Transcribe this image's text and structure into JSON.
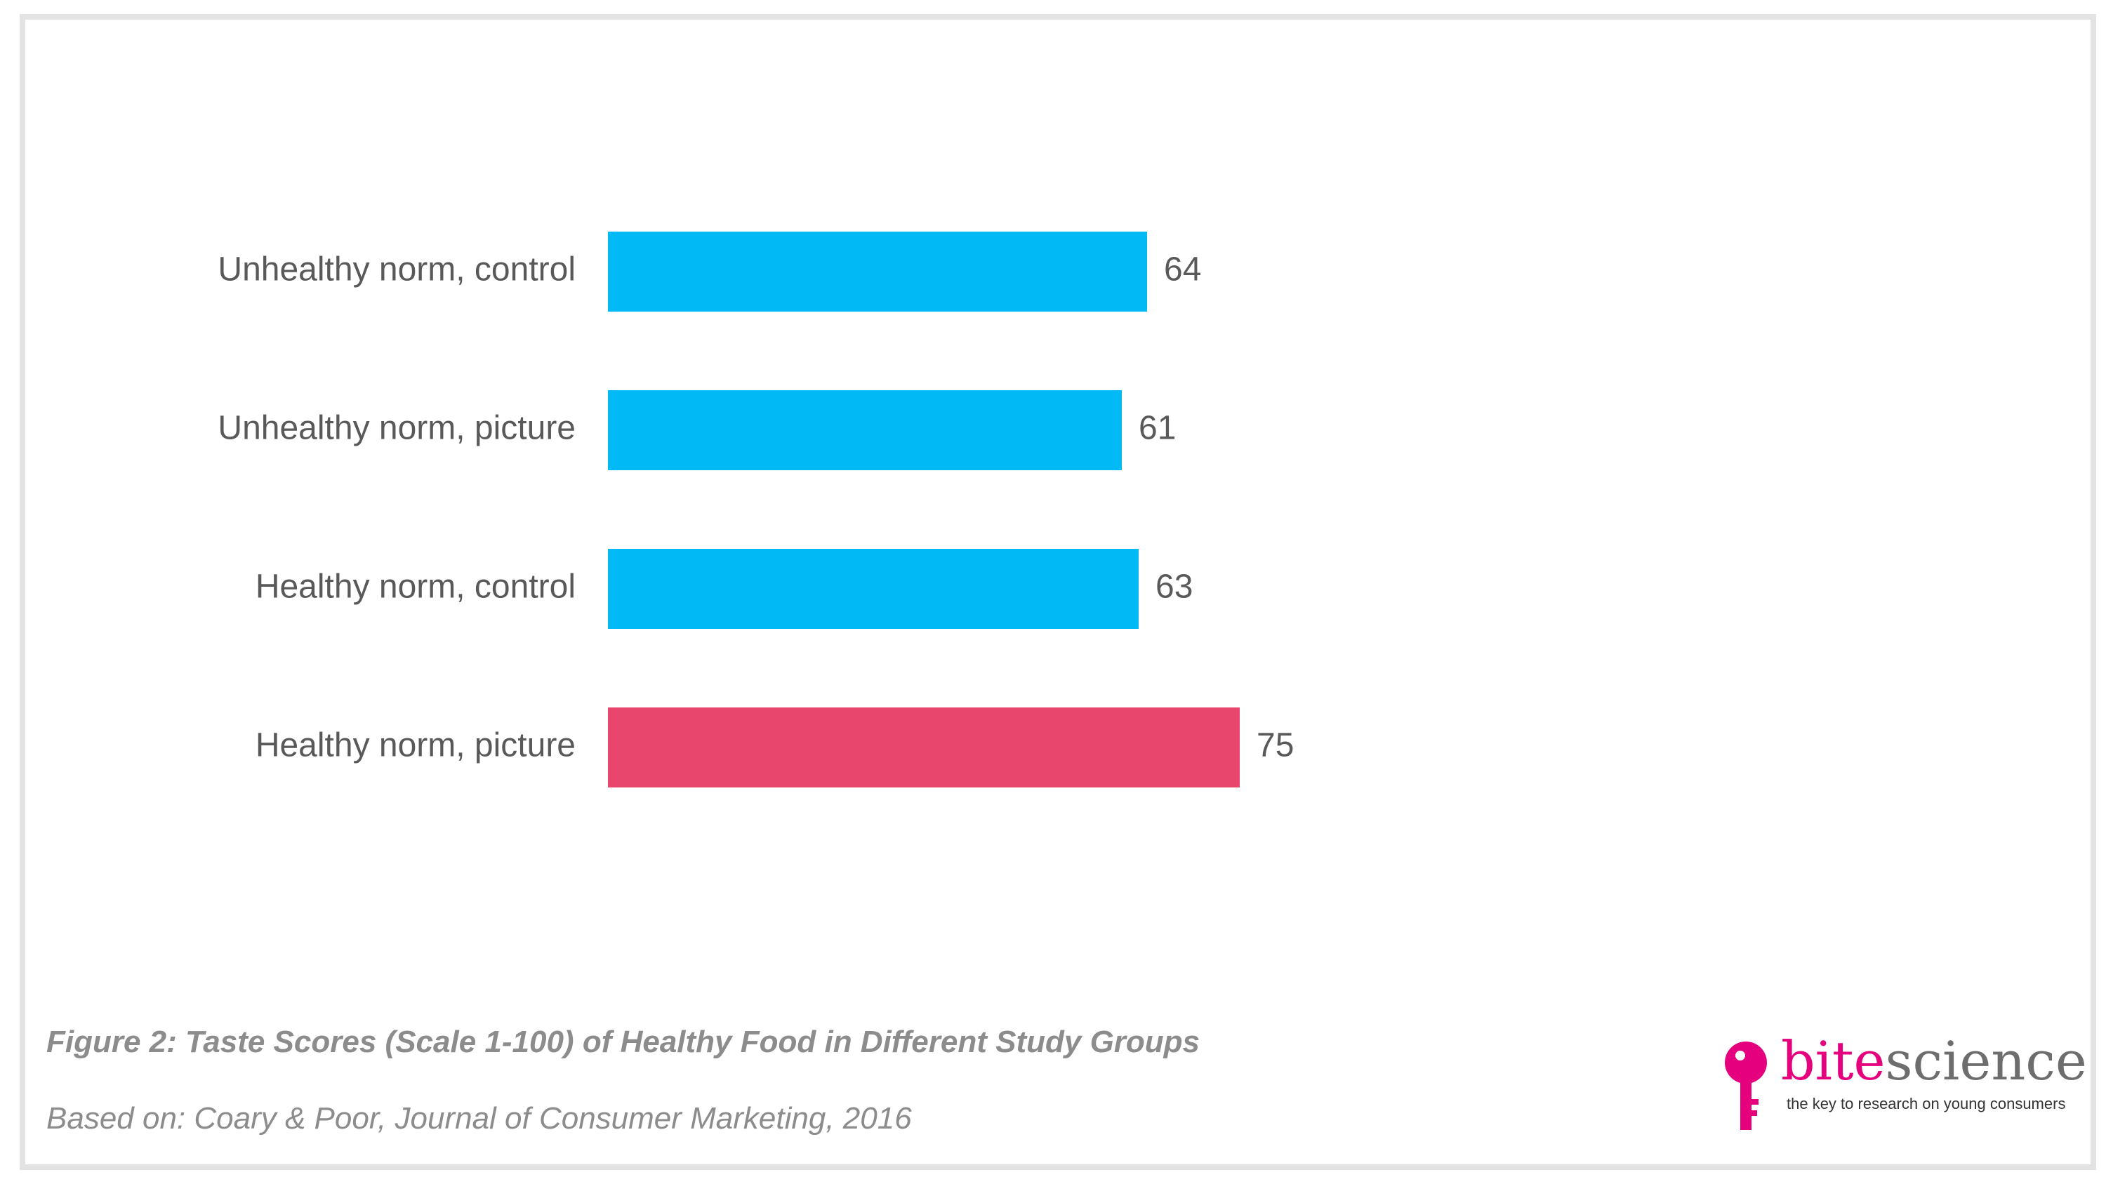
{
  "chart_data": {
    "type": "bar",
    "orientation": "horizontal",
    "categories": [
      "Unhealthy norm, control",
      "Unhealthy norm, picture",
      "Healthy norm, control",
      "Healthy norm, picture"
    ],
    "values": [
      64,
      61,
      63,
      75
    ],
    "value_labels": [
      "64",
      "61",
      "63",
      "75"
    ],
    "colors": [
      "#00b9f5",
      "#00b9f5",
      "#00b9f5",
      "#e8466d"
    ],
    "xlim": [
      0,
      100
    ],
    "grid": false,
    "legend": "none"
  },
  "caption": "Figure 2: Taste Scores (Scale 1-100) of Healthy Food in Different Study Groups",
  "source": "Based on: Coary & Poor, Journal of Consumer Marketing, 2016",
  "logo": {
    "brand_part1": "bite",
    "brand_part2": "science",
    "tagline": "the key to research on young consumers",
    "icon": "key-icon",
    "brand_color": "#e5007e"
  }
}
